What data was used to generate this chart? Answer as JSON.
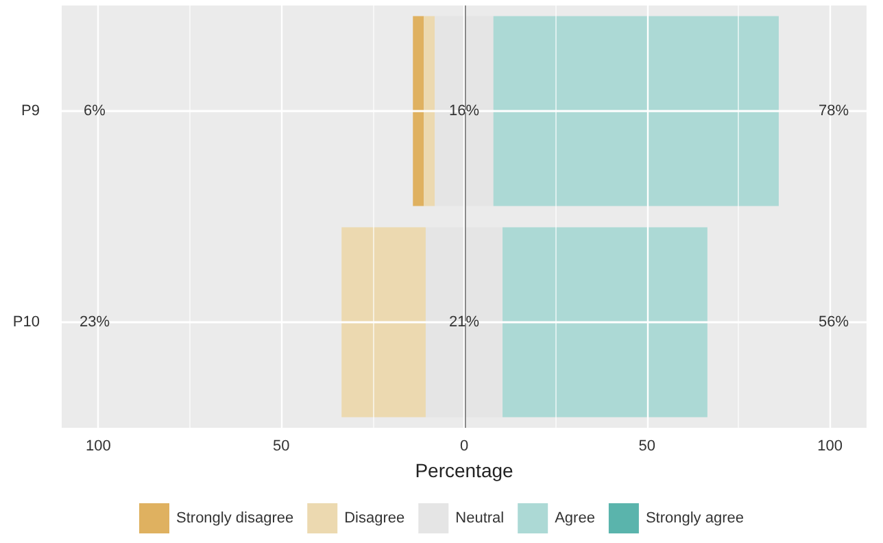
{
  "chart_data": {
    "type": "bar",
    "orientation": "horizontal",
    "xlabel": "Percentage",
    "categories": [
      "P9",
      "P10"
    ],
    "series": [
      {
        "name": "Strongly disagree",
        "color": "#dfb160",
        "values": [
          3,
          0
        ],
        "base": [
          -14,
          null
        ]
      },
      {
        "name": "Disagree",
        "color": "#ecd9b0",
        "values": [
          3,
          23
        ],
        "base": [
          -11,
          -33.5
        ]
      },
      {
        "name": "Neutral",
        "color": "#e5e5e5",
        "values": [
          16,
          21
        ],
        "base": [
          -8,
          -10.5
        ]
      },
      {
        "name": "Agree",
        "color": "#acd9d5",
        "values": [
          78,
          56
        ],
        "base": [
          8,
          10.5
        ]
      },
      {
        "name": "Strongly agree",
        "color": "#5ab4ac",
        "values": [
          0,
          0
        ],
        "base": [
          null,
          null
        ]
      }
    ],
    "xlim": [
      -110,
      110
    ],
    "xticks": [
      {
        "value": -100,
        "label": "100"
      },
      {
        "value": -75,
        "label": null
      },
      {
        "value": -50,
        "label": "50"
      },
      {
        "value": -25,
        "label": null
      },
      {
        "value": 0,
        "label": "0"
      },
      {
        "value": 25,
        "label": null
      },
      {
        "value": 50,
        "label": "50"
      },
      {
        "value": 75,
        "label": null
      },
      {
        "value": 100,
        "label": "100"
      }
    ],
    "ref_lines": [
      {
        "axis": "x",
        "value": 0,
        "color": "#555555"
      }
    ],
    "annotations": [
      "6%",
      "16%",
      "78%",
      "23%",
      "21%",
      "56%"
    ],
    "grid": true,
    "legend": "bottom"
  }
}
